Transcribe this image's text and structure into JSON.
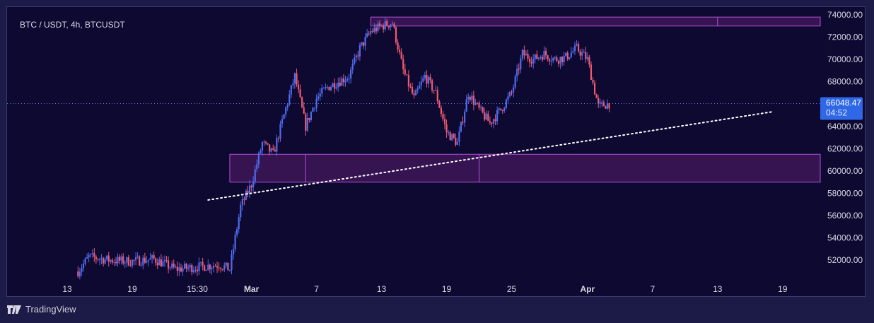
{
  "header": {
    "symbol": "BTC / USDT, 4h, BTCUSDT"
  },
  "footer": {
    "brand": "TradingView",
    "logo_icon": "tradingview-logo-icon"
  },
  "price_label": {
    "price": "66048.47",
    "countdown": "04:52"
  },
  "colors": {
    "background": "#0d0930",
    "up": "#4f6bef",
    "down": "#ef5a6e",
    "zone_fill": "#5a1d70",
    "zone_border": "#b152d6",
    "price_label_bg": "#2f67e6",
    "trendline": "#ffffff"
  },
  "chart_data": {
    "type": "candlestick",
    "title": "",
    "xlabel": "",
    "ylabel": "",
    "ylim": [
      50300,
      74500
    ],
    "y_ticks": [
      "74000.00",
      "72000.00",
      "70000.00",
      "68000.00",
      "66000.00",
      "64000.00",
      "62000.00",
      "60000.00",
      "58000.00",
      "56000.00",
      "54000.00",
      "52000.00"
    ],
    "x_ticks": [
      "13",
      "19",
      "15:30",
      "Mar",
      "7",
      "13",
      "19",
      "25",
      "Apr",
      "7",
      "13",
      "19"
    ],
    "current_price": 66048.47,
    "series": [
      {
        "name": "",
        "path": [
          {
            "t": "Feb 14",
            "p": 51000
          },
          {
            "t": "Feb 15",
            "p": 52300
          },
          {
            "t": "Feb 17",
            "p": 52000
          },
          {
            "t": "Feb 19",
            "p": 51900
          },
          {
            "t": "Feb 21",
            "p": 52100
          },
          {
            "t": "Feb 23",
            "p": 51200
          },
          {
            "t": "Feb 25",
            "p": 51400
          },
          {
            "t": "Feb 27",
            "p": 51600
          },
          {
            "t": "Feb 28",
            "p": 51200
          },
          {
            "t": "Feb 29",
            "p": 56800
          },
          {
            "t": "Mar 1",
            "p": 58800
          },
          {
            "t": "Mar 2",
            "p": 62500
          },
          {
            "t": "Mar 3",
            "p": 61500
          },
          {
            "t": "Mar 4",
            "p": 65000
          },
          {
            "t": "Mar 5",
            "p": 68500
          },
          {
            "t": "Mar 6",
            "p": 64000
          },
          {
            "t": "Mar 7",
            "p": 66500
          },
          {
            "t": "Mar 8",
            "p": 67500
          },
          {
            "t": "Mar 10",
            "p": 68500
          },
          {
            "t": "Mar 11",
            "p": 71000
          },
          {
            "t": "Mar 12",
            "p": 72500
          },
          {
            "t": "Mar 13",
            "p": 73000
          },
          {
            "t": "Mar 14",
            "p": 73300
          },
          {
            "t": "Mar 15",
            "p": 69000
          },
          {
            "t": "Mar 16",
            "p": 66500
          },
          {
            "t": "Mar 17",
            "p": 68500
          },
          {
            "t": "Mar 18",
            "p": 67000
          },
          {
            "t": "Mar 19",
            "p": 63500
          },
          {
            "t": "Mar 20",
            "p": 62500
          },
          {
            "t": "Mar 21",
            "p": 67000
          },
          {
            "t": "Mar 22",
            "p": 65500
          },
          {
            "t": "Mar 23",
            "p": 64300
          },
          {
            "t": "Mar 24",
            "p": 65500
          },
          {
            "t": "Mar 25",
            "p": 67000
          },
          {
            "t": "Mar 26",
            "p": 70500
          },
          {
            "t": "Mar 27",
            "p": 70000
          },
          {
            "t": "Mar 28",
            "p": 70500
          },
          {
            "t": "Mar 29",
            "p": 70000
          },
          {
            "t": "Mar 30",
            "p": 70200
          },
          {
            "t": "Mar 31",
            "p": 71000
          },
          {
            "t": "Apr 1",
            "p": 70000
          },
          {
            "t": "Apr 2",
            "p": 65800
          },
          {
            "t": "Apr 3",
            "p": 66048
          }
        ]
      }
    ],
    "zones": [
      {
        "from": "Mar 12",
        "to": "Apr 23",
        "low": 73000,
        "high": 73800,
        "divider": "Apr 13"
      },
      {
        "from": "Feb 28",
        "to": "Apr 23",
        "low": 59000,
        "high": 61500,
        "dividers": [
          "Mar 6",
          "Mar 22"
        ]
      }
    ],
    "trendline": {
      "from": {
        "t": "Feb 26",
        "p": 57400
      },
      "to": {
        "t": "Apr 18",
        "p": 65300
      },
      "style": "dotted"
    },
    "grid": false
  }
}
